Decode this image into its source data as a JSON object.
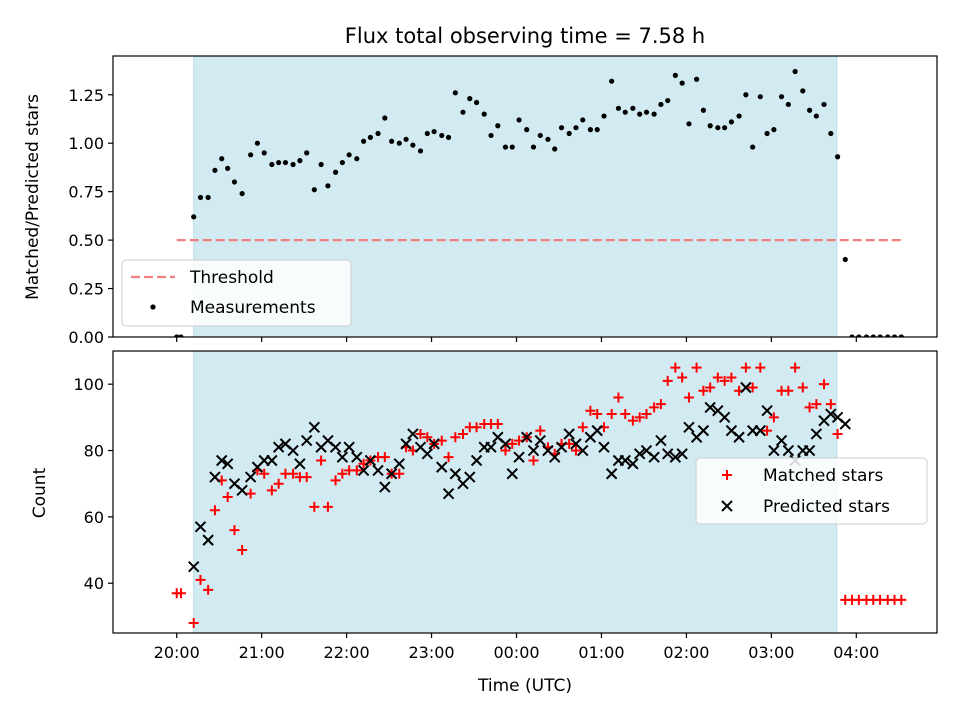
{
  "chart_data": [
    {
      "type": "scatter",
      "title": "Flux total observing time = 7.58 h",
      "xlabel": "",
      "ylabel": "Matched/Predicted stars",
      "xlim_hours": [
        19.25,
        28.95
      ],
      "ylim": [
        0,
        1.45
      ],
      "x_ticks": [
        "20:00",
        "21:00",
        "22:00",
        "23:00",
        "00:00",
        "01:00",
        "02:00",
        "03:00",
        "04:00"
      ],
      "y_ticks": [
        "0.00",
        "0.25",
        "0.50",
        "0.75",
        "1.00",
        "1.25"
      ],
      "shaded_region_hours": [
        20.2,
        27.77
      ],
      "shade_color": "#add8e6",
      "legend": {
        "placement": "lower-left",
        "entries": [
          "Threshold",
          "Measurements"
        ]
      },
      "threshold": {
        "name": "Threshold",
        "value": 0.5,
        "x_range_hours": [
          20.0,
          28.55
        ],
        "color": "#f08080",
        "style": "dashed"
      },
      "series": [
        {
          "name": "Measurements",
          "marker": "dot",
          "color": "#000000",
          "x_hours": [
            20.0,
            20.05,
            20.2,
            20.28,
            20.37,
            20.45,
            20.53,
            20.6,
            20.68,
            20.77,
            20.87,
            20.95,
            21.03,
            21.12,
            21.2,
            21.28,
            21.37,
            21.45,
            21.53,
            21.62,
            21.7,
            21.78,
            21.87,
            21.95,
            22.03,
            22.12,
            22.2,
            22.28,
            22.37,
            22.45,
            22.53,
            22.62,
            22.7,
            22.78,
            22.87,
            22.95,
            23.03,
            23.12,
            23.2,
            23.28,
            23.37,
            23.45,
            23.53,
            23.62,
            23.7,
            23.78,
            23.87,
            23.95,
            24.03,
            24.12,
            24.2,
            24.28,
            24.37,
            24.45,
            24.53,
            24.62,
            24.7,
            24.78,
            24.87,
            24.95,
            25.03,
            25.12,
            25.2,
            25.28,
            25.37,
            25.45,
            25.53,
            25.62,
            25.7,
            25.78,
            25.87,
            25.95,
            26.03,
            26.12,
            26.2,
            26.28,
            26.37,
            26.45,
            26.53,
            26.62,
            26.7,
            26.78,
            26.87,
            26.95,
            27.03,
            27.12,
            27.2,
            27.28,
            27.37,
            27.45,
            27.53,
            27.62,
            27.7,
            27.78,
            27.87,
            27.95,
            28.03,
            28.12,
            28.2,
            28.28,
            28.37,
            28.45,
            28.53
          ],
          "y": [
            0.0,
            0.0,
            0.62,
            0.72,
            0.72,
            0.86,
            0.92,
            0.87,
            0.8,
            0.74,
            0.94,
            1.0,
            0.95,
            0.89,
            0.9,
            0.9,
            0.89,
            0.91,
            0.95,
            0.76,
            0.89,
            0.78,
            0.85,
            0.9,
            0.94,
            0.92,
            1.01,
            1.03,
            1.05,
            1.13,
            1.01,
            1.0,
            1.02,
            0.99,
            0.96,
            1.05,
            1.06,
            1.04,
            1.03,
            1.26,
            1.16,
            1.23,
            1.21,
            1.15,
            1.04,
            1.09,
            0.98,
            0.98,
            1.12,
            1.07,
            0.98,
            1.04,
            1.02,
            0.97,
            1.08,
            1.05,
            1.08,
            1.12,
            1.07,
            1.07,
            1.14,
            1.32,
            1.18,
            1.16,
            1.18,
            1.15,
            1.16,
            1.15,
            1.2,
            1.22,
            1.35,
            1.31,
            1.1,
            1.33,
            1.17,
            1.09,
            1.08,
            1.08,
            1.11,
            1.14,
            1.25,
            0.98,
            1.24,
            1.05,
            1.07,
            1.24,
            1.2,
            1.37,
            1.27,
            1.17,
            1.14,
            1.2,
            1.05,
            0.93,
            0.4,
            0.0,
            0.0,
            0.0,
            0.0,
            0.0,
            0.0,
            0.0,
            0.0
          ]
        }
      ]
    },
    {
      "type": "scatter",
      "title": "",
      "xlabel": "Time (UTC)",
      "ylabel": "Count",
      "xlim_hours": [
        19.25,
        28.95
      ],
      "ylim": [
        25,
        110
      ],
      "x_ticks": [
        "20:00",
        "21:00",
        "22:00",
        "23:00",
        "00:00",
        "01:00",
        "02:00",
        "03:00",
        "04:00"
      ],
      "y_ticks": [
        "40",
        "60",
        "80",
        "100"
      ],
      "shaded_region_hours": [
        20.2,
        27.77
      ],
      "shade_color": "#add8e6",
      "legend": {
        "placement": "center-right",
        "entries": [
          "Matched stars",
          "Predicted stars"
        ]
      },
      "series": [
        {
          "name": "Matched stars",
          "marker": "plus",
          "color": "#ff0000",
          "x_hours": [
            20.0,
            20.05,
            20.2,
            20.28,
            20.37,
            20.45,
            20.53,
            20.6,
            20.68,
            20.77,
            20.87,
            20.95,
            21.03,
            21.12,
            21.2,
            21.28,
            21.37,
            21.45,
            21.53,
            21.62,
            21.7,
            21.78,
            21.87,
            21.95,
            22.03,
            22.12,
            22.2,
            22.28,
            22.37,
            22.45,
            22.53,
            22.62,
            22.7,
            22.78,
            22.87,
            22.95,
            23.03,
            23.12,
            23.2,
            23.28,
            23.37,
            23.45,
            23.53,
            23.62,
            23.7,
            23.78,
            23.87,
            23.95,
            24.03,
            24.12,
            24.2,
            24.28,
            24.37,
            24.45,
            24.53,
            24.62,
            24.7,
            24.78,
            24.87,
            24.95,
            25.03,
            25.12,
            25.2,
            25.28,
            25.37,
            25.45,
            25.53,
            25.62,
            25.7,
            25.78,
            25.87,
            25.95,
            26.03,
            26.12,
            26.2,
            26.28,
            26.37,
            26.45,
            26.53,
            26.62,
            26.7,
            26.78,
            26.87,
            26.95,
            27.03,
            27.12,
            27.2,
            27.28,
            27.37,
            27.45,
            27.53,
            27.62,
            27.7,
            27.78,
            27.87,
            27.95,
            28.03,
            28.12,
            28.2,
            28.28,
            28.37,
            28.45,
            28.53
          ],
          "y": [
            37,
            37,
            28,
            41,
            38,
            62,
            71,
            66,
            56,
            50,
            67,
            74,
            73,
            68,
            70,
            73,
            73,
            72,
            72,
            63,
            77,
            63,
            71,
            73,
            74,
            74,
            76,
            77,
            78,
            78,
            73,
            73,
            81,
            80,
            85,
            84,
            82,
            83,
            78,
            84,
            85,
            87,
            87,
            88,
            88,
            88,
            80,
            82,
            83,
            84,
            77,
            86,
            81,
            79,
            82,
            82,
            80,
            87,
            92,
            91,
            87,
            91,
            96,
            91,
            89,
            90,
            91,
            93,
            94,
            101,
            105,
            102,
            96,
            105,
            98,
            99,
            102,
            101,
            102,
            98,
            105,
            99,
            105,
            86,
            90,
            98,
            98,
            105,
            99,
            93,
            94,
            100,
            94,
            85,
            35,
            35,
            35,
            35,
            35,
            35,
            35,
            35,
            35
          ]
        },
        {
          "name": "Predicted stars",
          "marker": "x",
          "color": "#000000",
          "x_hours": [
            20.2,
            20.28,
            20.37,
            20.45,
            20.53,
            20.6,
            20.68,
            20.77,
            20.87,
            20.95,
            21.03,
            21.12,
            21.2,
            21.28,
            21.37,
            21.45,
            21.53,
            21.62,
            21.7,
            21.78,
            21.87,
            21.95,
            22.03,
            22.12,
            22.2,
            22.28,
            22.37,
            22.45,
            22.53,
            22.62,
            22.7,
            22.78,
            22.87,
            22.95,
            23.03,
            23.12,
            23.2,
            23.28,
            23.37,
            23.45,
            23.53,
            23.62,
            23.7,
            23.78,
            23.87,
            23.95,
            24.03,
            24.12,
            24.2,
            24.28,
            24.37,
            24.45,
            24.53,
            24.62,
            24.7,
            24.78,
            24.87,
            24.95,
            25.03,
            25.12,
            25.2,
            25.28,
            25.37,
            25.45,
            25.53,
            25.62,
            25.7,
            25.78,
            25.87,
            25.95,
            26.03,
            26.12,
            26.2,
            26.28,
            26.37,
            26.45,
            26.53,
            26.62,
            26.7,
            26.78,
            26.87,
            26.95,
            27.03,
            27.12,
            27.2,
            27.28,
            27.37,
            27.45,
            27.53,
            27.62,
            27.7,
            27.78,
            27.87
          ],
          "y": [
            45,
            57,
            53,
            72,
            77,
            76,
            70,
            68,
            72,
            75,
            77,
            77,
            81,
            82,
            80,
            76,
            83,
            87,
            81,
            83,
            81,
            78,
            81,
            78,
            74,
            77,
            74,
            69,
            73,
            76,
            82,
            85,
            81,
            79,
            82,
            75,
            67,
            73,
            70,
            72,
            77,
            81,
            81,
            84,
            82,
            73,
            78,
            84,
            80,
            83,
            80,
            78,
            81,
            85,
            82,
            80,
            84,
            86,
            81,
            73,
            77,
            77,
            76,
            79,
            80,
            78,
            83,
            79,
            78,
            79,
            87,
            84,
            86,
            93,
            92,
            90,
            86,
            84,
            99,
            86,
            86,
            92,
            80,
            83,
            80,
            77,
            80,
            80,
            85,
            89,
            91,
            90,
            88
          ]
        }
      ]
    }
  ]
}
